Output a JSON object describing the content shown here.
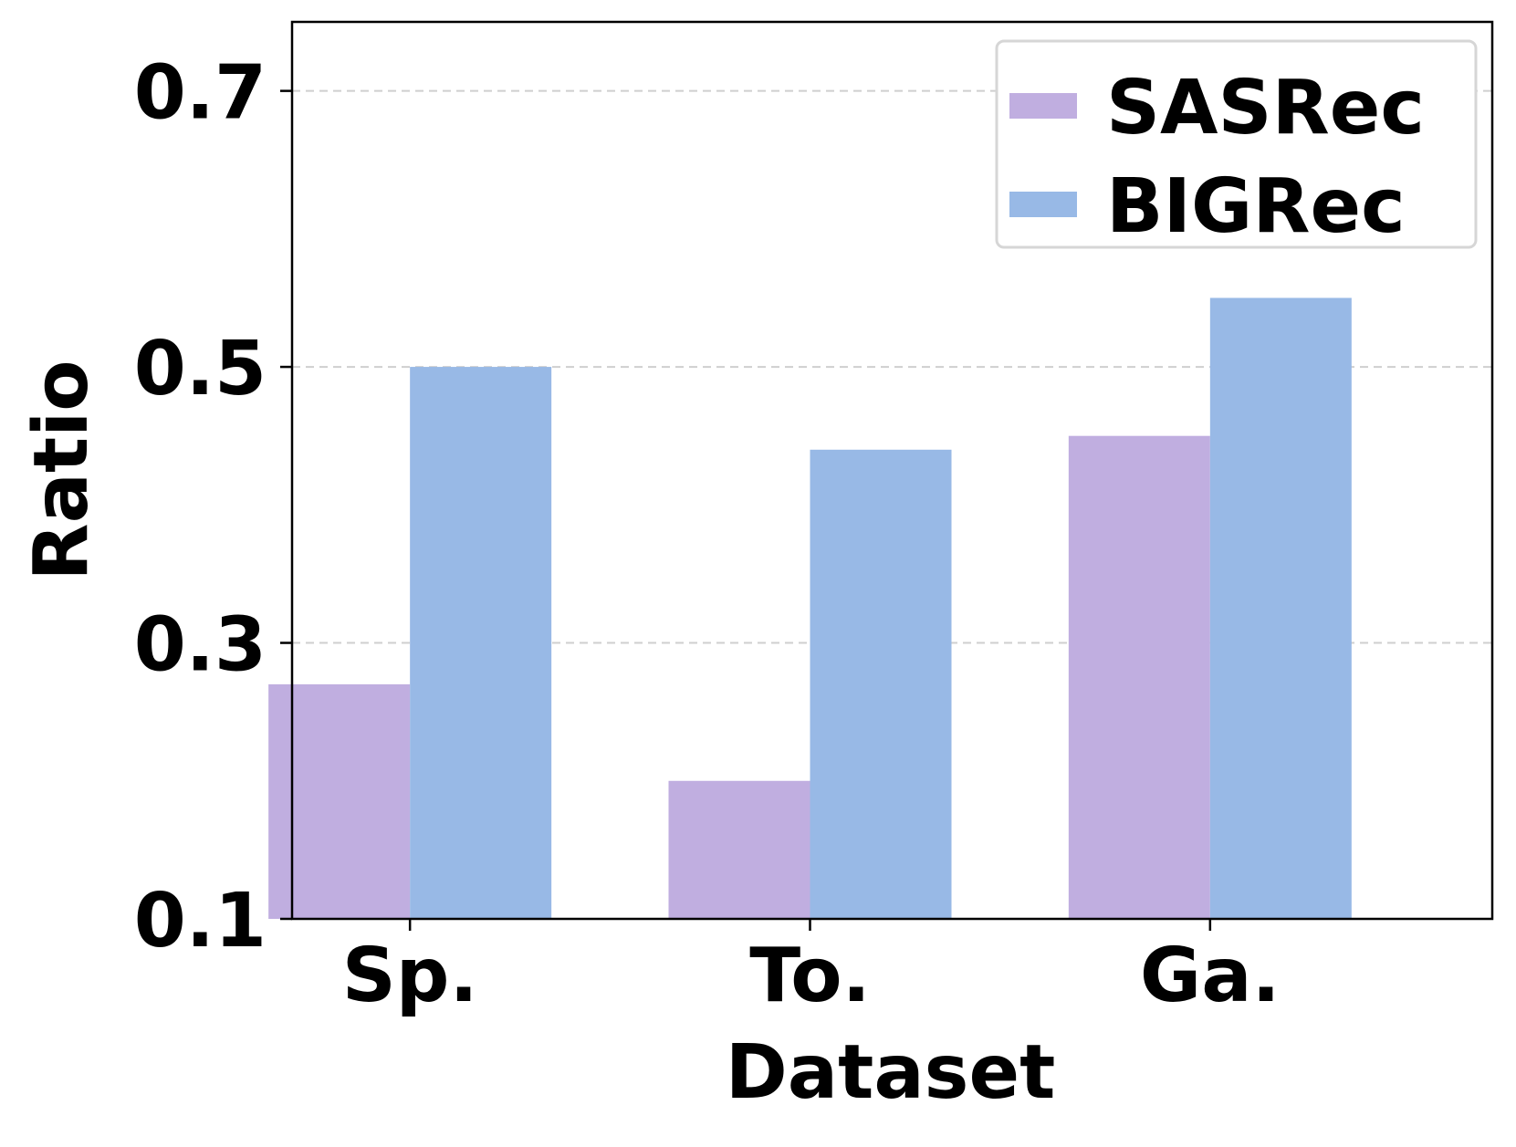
{
  "chart_data": {
    "type": "bar",
    "categories": [
      "Sp.",
      "To.",
      "Ga."
    ],
    "series": [
      {
        "name": "SASRec",
        "values": [
          0.27,
          0.2,
          0.45
        ],
        "color": "#c0aee0"
      },
      {
        "name": "BIGRec",
        "values": [
          0.5,
          0.44,
          0.55
        ],
        "color": "#98b9e6"
      }
    ],
    "xlabel": "Dataset",
    "ylabel": "Ratio",
    "ylim": [
      0.1,
      0.75
    ],
    "yticks": [
      0.1,
      0.3,
      0.5,
      0.7
    ],
    "ytick_labels": [
      "0.1",
      "0.3",
      "0.5",
      "0.7"
    ],
    "grid": "y-dashed",
    "legend_position": "top-right"
  }
}
